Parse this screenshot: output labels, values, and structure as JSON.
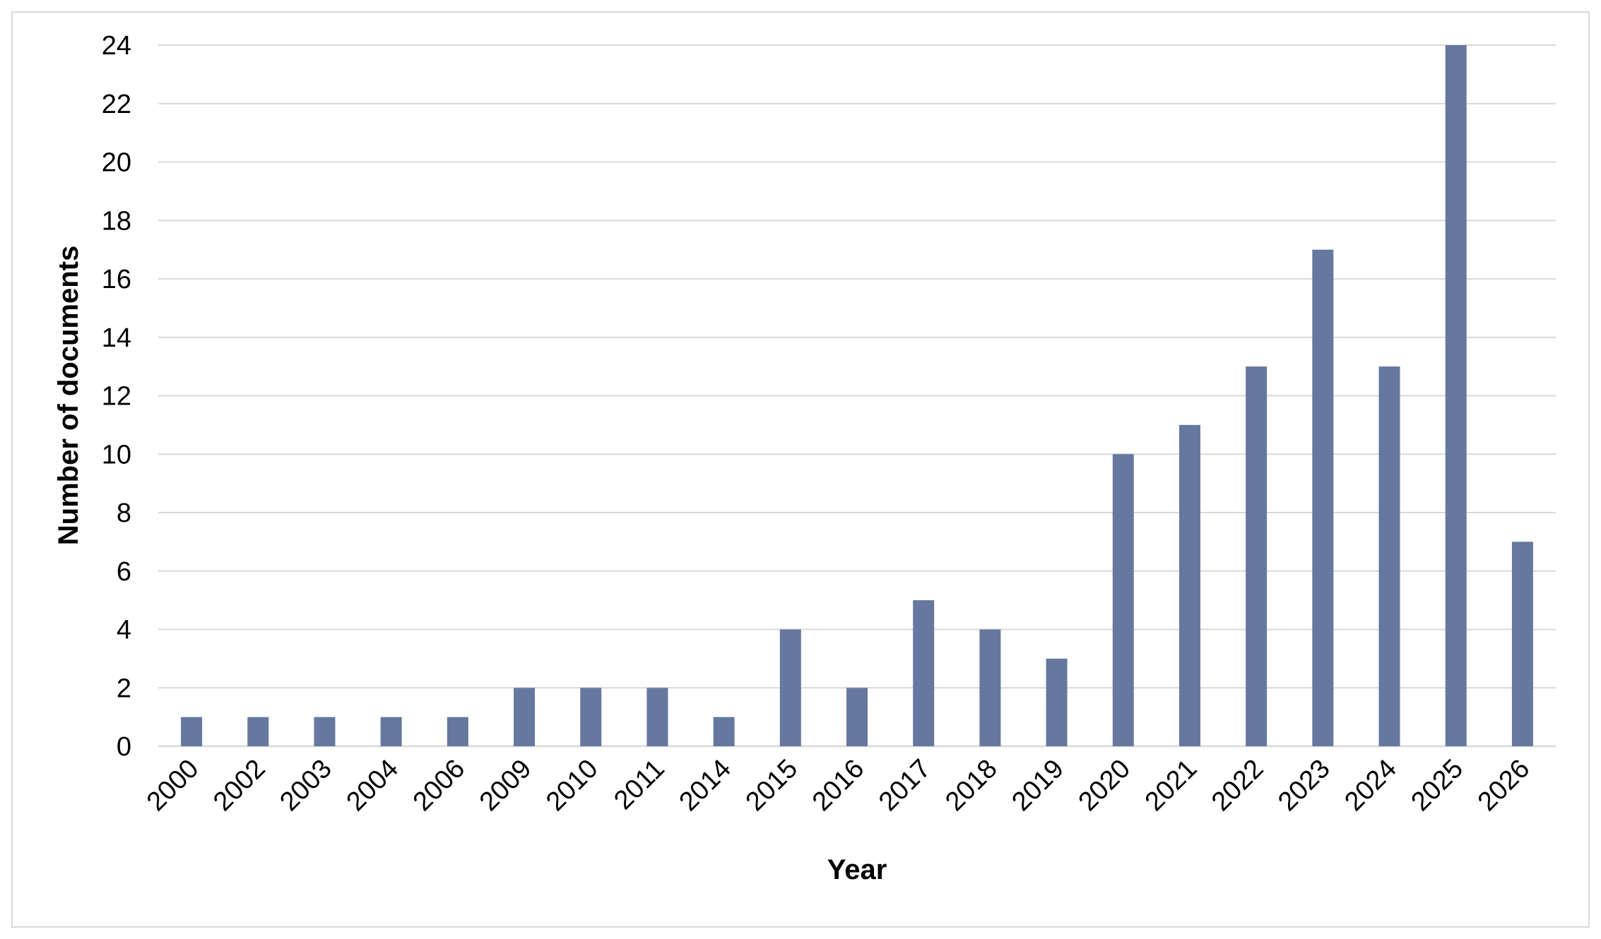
{
  "chart_data": {
    "type": "bar",
    "title": "",
    "xlabel": "Year",
    "ylabel": "Number of documents",
    "categories": [
      "2000",
      "2002",
      "2003",
      "2004",
      "2006",
      "2009",
      "2010",
      "2011",
      "2014",
      "2015",
      "2016",
      "2017",
      "2018",
      "2019",
      "2020",
      "2021",
      "2022",
      "2023",
      "2024",
      "2025",
      "2026"
    ],
    "values": [
      1,
      1,
      1,
      1,
      1,
      2,
      2,
      2,
      1,
      4,
      2,
      5,
      4,
      3,
      10,
      11,
      13,
      17,
      13,
      24,
      7
    ],
    "ylim": [
      0,
      24
    ],
    "yticks": [
      0,
      2,
      4,
      6,
      8,
      10,
      12,
      14,
      16,
      18,
      20,
      22,
      24
    ],
    "grid": true,
    "legend": "none",
    "bar_color": "#66789f",
    "grid_color": "#d9d9d9"
  }
}
